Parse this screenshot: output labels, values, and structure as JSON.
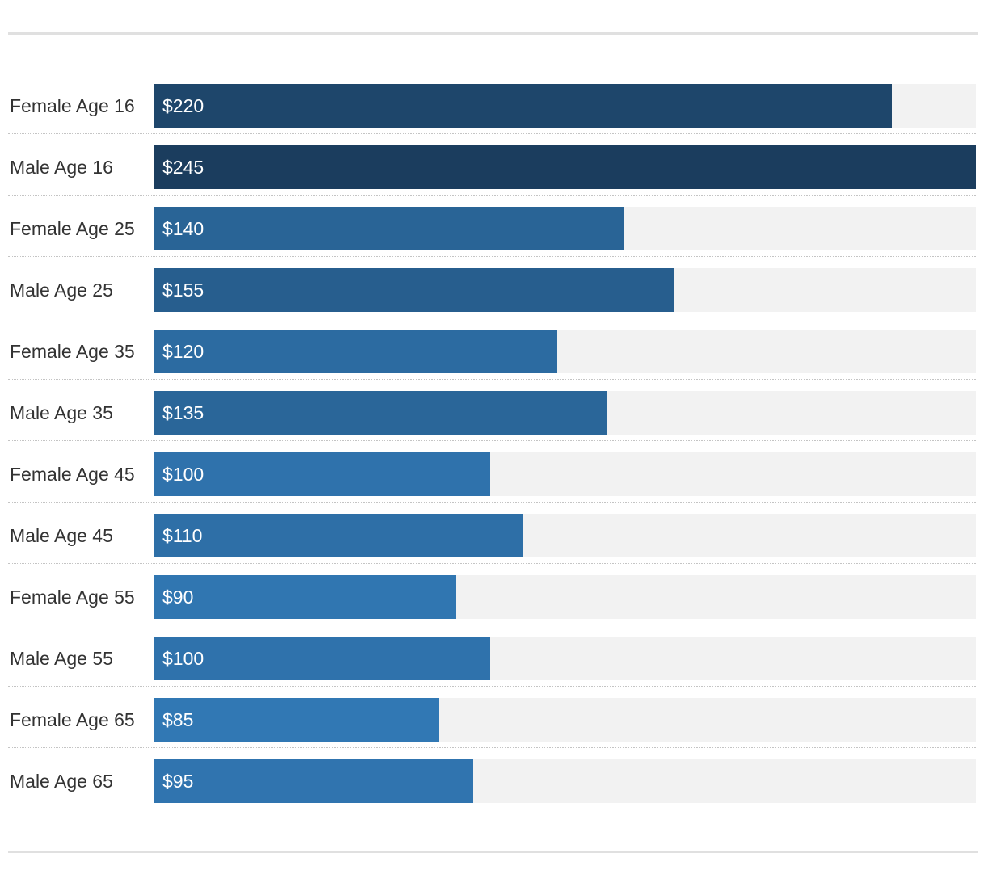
{
  "chart_data": {
    "type": "bar",
    "orientation": "horizontal",
    "title": "",
    "xlabel": "",
    "ylabel": "",
    "xlim": [
      0,
      245
    ],
    "grid": false,
    "legend": "none",
    "value_prefix": "$",
    "categories": [
      "Female Age 16",
      "Male Age 16",
      "Female Age 25",
      "Male Age 25",
      "Female Age 35",
      "Male Age 35",
      "Female Age 45",
      "Male Age 45",
      "Female Age 55",
      "Male Age 55",
      "Female Age 65",
      "Male Age 65"
    ],
    "values": [
      220,
      245,
      140,
      155,
      120,
      135,
      100,
      110,
      90,
      100,
      85,
      95
    ],
    "data_labels": [
      "$220",
      "$245",
      "$140",
      "$155",
      "$120",
      "$135",
      "$100",
      "$110",
      "$90",
      "$100",
      "$85",
      "$95"
    ],
    "colors": {
      "bar_dark": "#1b3d5e",
      "bar_light": "#3178b4",
      "track": "#f2f2f2",
      "label_text": "#333333",
      "value_text": "#ffffff"
    }
  }
}
